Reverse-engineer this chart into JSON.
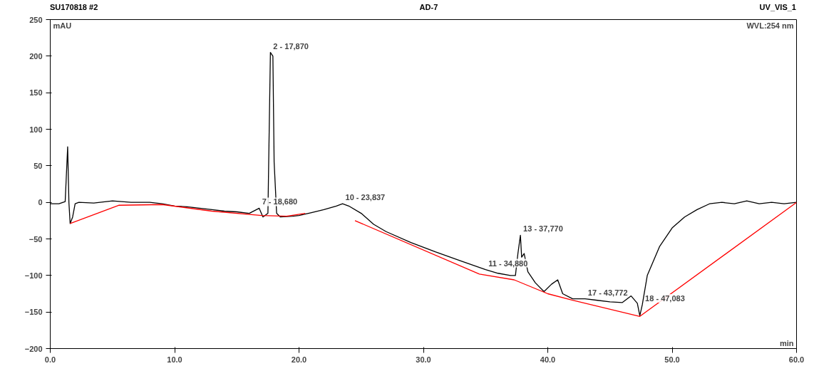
{
  "chart_data": {
    "type": "line",
    "title": "AD-7",
    "xlabel": "min",
    "ylabel": "mAU",
    "xlim": [
      0,
      60
    ],
    "ylim": [
      -200,
      250
    ],
    "xticks": [
      {
        "value": 0,
        "label": "0.0"
      },
      {
        "value": 10,
        "label": "10.0"
      },
      {
        "value": 20,
        "label": "20.0"
      },
      {
        "value": 30,
        "label": "30.0"
      },
      {
        "value": 40,
        "label": "40.0"
      },
      {
        "value": 50,
        "label": "50.0"
      },
      {
        "value": 60,
        "label": "60.0"
      }
    ],
    "yticks": [
      -200,
      -150,
      -100,
      -50,
      0,
      50,
      100,
      150,
      200,
      250
    ],
    "grid": false,
    "marker": "none",
    "line_style": "solid",
    "series": [
      {
        "color": "#000000",
        "x": [
          0,
          0.7,
          1.2,
          1.4,
          1.5,
          1.6,
          1.8,
          2.0,
          2.3,
          3.5,
          5,
          6.5,
          8,
          9,
          10,
          11,
          12,
          13,
          14,
          15,
          16,
          16.8,
          17.1,
          17.5,
          17.7,
          17.9,
          18.0,
          18.2,
          18.5,
          19.5,
          20,
          21,
          22,
          23,
          23.5,
          24,
          25,
          26,
          27,
          29,
          31,
          33,
          35,
          36,
          37,
          37.4,
          37.6,
          37.8,
          37.9,
          38.1,
          38.4,
          39,
          39.7,
          40.3,
          40.8,
          41.2,
          42,
          43,
          44,
          45,
          46,
          46.7,
          47.2,
          47.4,
          47.6,
          48,
          49,
          50,
          51,
          52,
          53,
          54,
          55,
          56,
          57,
          58,
          59,
          60
        ],
        "values": [
          -2,
          -2,
          1,
          76,
          0,
          -29,
          -20,
          -2,
          0,
          -1,
          2,
          0,
          0,
          -2,
          -5,
          -6,
          -8,
          -10,
          -12,
          -13,
          -15,
          -8,
          -20,
          -15,
          205,
          200,
          55,
          -15,
          -20,
          -19,
          -18,
          -14,
          -10,
          -5,
          -2,
          -5,
          -15,
          -30,
          -40,
          -55,
          -68,
          -80,
          -92,
          -97,
          -100,
          -100,
          -70,
          -45,
          -75,
          -70,
          -95,
          -110,
          -122,
          -112,
          -106,
          -125,
          -132,
          -132,
          -134,
          -136,
          -137,
          -128,
          -138,
          -155,
          -140,
          -100,
          -60,
          -35,
          -20,
          -10,
          -2,
          0,
          -2,
          2,
          -2,
          0,
          -2,
          0
        ]
      },
      {
        "color": "#ff0000",
        "x": [
          1.6,
          5.5,
          9,
          13,
          17,
          19,
          20.5,
          23.5,
          24.5,
          34.5,
          37.3,
          40,
          42,
          47.4,
          60
        ],
        "values": [
          -29,
          -4,
          -3,
          -12,
          -18,
          -19,
          -15,
          null,
          -25,
          -98,
          -106,
          -125,
          -134,
          -156,
          0
        ]
      }
    ],
    "annotations": [
      "SU170818 #2",
      "UV_VIS_1",
      "WVL:254 nm",
      {
        "text": "2 - 17,870",
        "x": 17.7,
        "y": 205
      },
      {
        "text": "7 - 18,680",
        "x": 16.8,
        "y": -8
      },
      {
        "text": "10 - 23,837",
        "x": 23.5,
        "y": -2
      },
      {
        "text": "11 - 34,880",
        "x": 35,
        "y": -92
      },
      {
        "text": "13 - 37,770",
        "x": 37.8,
        "y": -45
      },
      {
        "text": "17 - 43,772",
        "x": 43,
        "y": -132
      },
      {
        "text": "18 - 47,083",
        "x": 47.6,
        "y": -140
      }
    ]
  }
}
